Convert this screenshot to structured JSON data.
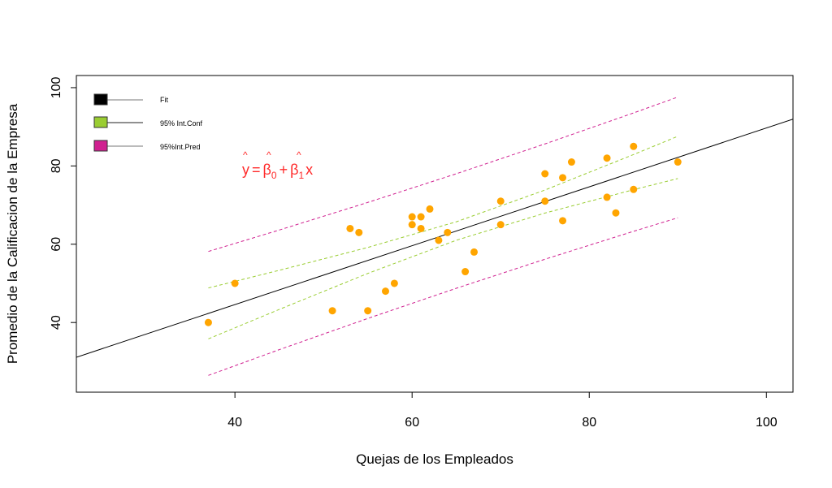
{
  "chart_data": {
    "type": "scatter",
    "xlabel": "Quejas de los Empleados",
    "ylabel": "Promedio de la Calificacion de la Empresa",
    "xlim": [
      22.1,
      103.0
    ],
    "ylim": [
      22.2,
      103.1
    ],
    "xticks": [
      40,
      60,
      80,
      100
    ],
    "yticks": [
      40,
      60,
      80,
      100
    ],
    "grid": false,
    "points": {
      "name": "data",
      "color": "#FFA500",
      "x": [
        37,
        40,
        51,
        53,
        54,
        55,
        57,
        58,
        60,
        60,
        61,
        61,
        62,
        63,
        64,
        66,
        67,
        70,
        70,
        75,
        75,
        77,
        77,
        78,
        82,
        82,
        83,
        85,
        85,
        90
      ],
      "y": [
        40,
        50,
        43,
        64,
        63,
        43,
        48,
        50,
        67,
        65,
        67,
        64,
        69,
        61,
        63,
        53,
        58,
        71,
        65,
        78,
        71,
        77,
        66,
        81,
        82,
        72,
        68,
        85,
        74,
        81
      ]
    },
    "fit": {
      "intercept": 14.5,
      "slope": 0.752,
      "color": "#000000"
    },
    "bands": {
      "x": [
        37,
        45,
        55,
        65,
        75,
        85,
        90
      ],
      "conf_upper": [
        48.82,
        53.34,
        59.18,
        65.74,
        73.84,
        82.91,
        87.58
      ],
      "conf_lower": [
        35.82,
        43.34,
        52.54,
        61.02,
        67.96,
        73.93,
        76.78
      ],
      "pred_upper": [
        58.15,
        63.62,
        70.68,
        78.01,
        85.63,
        93.54,
        97.6
      ],
      "pred_lower": [
        26.49,
        33.06,
        41.04,
        48.75,
        56.17,
        63.3,
        66.76
      ],
      "conf_color": "#9ACD32",
      "pred_color": "#D02090"
    },
    "legend": {
      "placement": "top-left",
      "entries": [
        {
          "label": "Fit",
          "color": "#000000"
        },
        {
          "label": "95% Int.Conf",
          "color": "#9ACD32"
        },
        {
          "label": "95%Int.Pred",
          "color": "#D02090"
        }
      ]
    },
    "annotation": {
      "y": "y",
      "eq": "=",
      "b0": "β",
      "sub0": "0",
      "plus": "+",
      "b1": "β",
      "sub1": "1",
      "x": "x",
      "hat": "^",
      "color": "#FF2A2A"
    }
  }
}
